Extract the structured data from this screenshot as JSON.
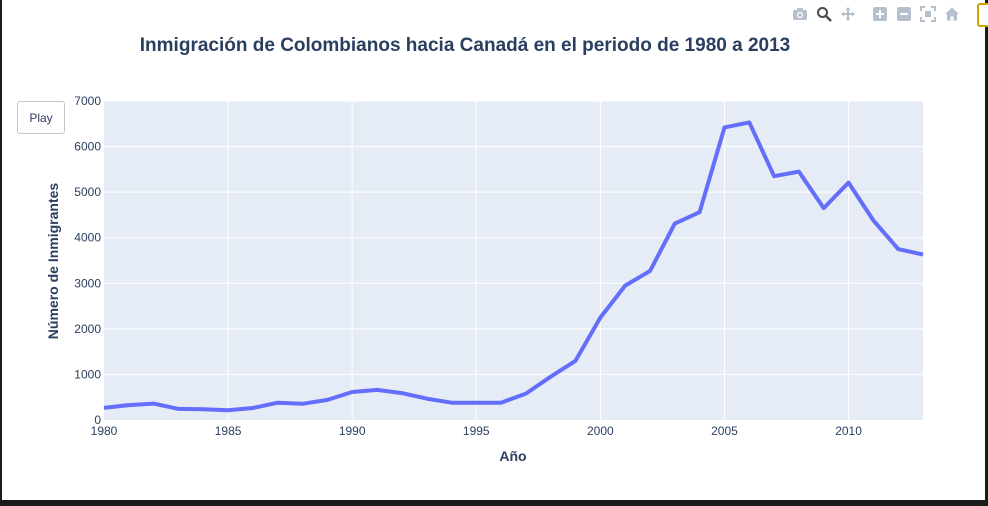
{
  "controls": {
    "play_label": "Play"
  },
  "modebar": {
    "icons": [
      "camera-icon",
      "zoom-icon",
      "pan-icon",
      "zoom-in-icon",
      "zoom-out-icon",
      "autoscale-icon",
      "home-icon"
    ],
    "active": "zoom-icon"
  },
  "colors": {
    "line": "#636efa",
    "plot_bg": "#e5ecf6",
    "text": "#2a3f5f",
    "grid": "#ffffff"
  },
  "chart_data": {
    "type": "line",
    "title": "Inmigración de Colombianos hacia Canadá en el periodo de 1980 a 2013",
    "xlabel": "Año",
    "ylabel": "Número de Inmigrantes",
    "xlim": [
      1980,
      2013
    ],
    "ylim": [
      0,
      7000
    ],
    "xticks": [
      1980,
      1985,
      1990,
      1995,
      2000,
      2005,
      2010
    ],
    "yticks": [
      0,
      1000,
      2000,
      3000,
      4000,
      5000,
      6000,
      7000
    ],
    "grid": true,
    "legend": "none",
    "series": [
      {
        "x": [
          1980,
          1981,
          1982,
          1983,
          1984,
          1985,
          1986,
          1987,
          1988,
          1989,
          1990,
          1991,
          1992,
          1993,
          1994,
          1995,
          1996,
          1997,
          1998,
          1999,
          2000,
          2001,
          2002,
          2003,
          2004,
          2005,
          2006,
          2007,
          2008,
          2009,
          2010,
          2011,
          2012,
          2013
        ],
        "values": [
          266,
          326,
          360,
          244,
          235,
          214,
          264,
          380,
          355,
          440,
          615,
          660,
          590,
          470,
          380,
          380,
          380,
          580,
          950,
          1300,
          2250,
          2950,
          3270,
          4310,
          4560,
          6420,
          6530,
          5350,
          5450,
          4650,
          5210,
          4380,
          3750,
          3630
        ]
      }
    ]
  }
}
